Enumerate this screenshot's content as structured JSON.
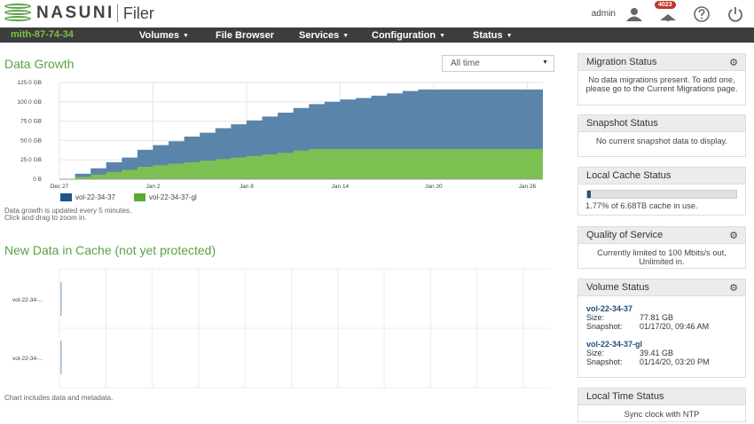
{
  "header": {
    "brand": "NASUNI",
    "product": "Filer",
    "user": "admin",
    "notification_count": "4023"
  },
  "nav": {
    "hostname": "mith-87-74-34",
    "items": [
      {
        "label": "Volumes",
        "caret": "▼"
      },
      {
        "label": "File Browser",
        "caret": ""
      },
      {
        "label": "Services",
        "caret": "▼"
      },
      {
        "label": "Configuration",
        "caret": "▼"
      },
      {
        "label": "Status",
        "caret": "▼"
      }
    ]
  },
  "data_growth": {
    "title": "Data Growth",
    "range_select": "All time",
    "notes": [
      "Data growth is updated every 5 minutes.",
      "Click and drag to zoom in."
    ]
  },
  "chart_data": [
    {
      "type": "area",
      "title": "Data Growth",
      "y_ticks": [
        "125.0 GB",
        "100.0 GB",
        "75.0 GB",
        "50.0 GB",
        "25.0 GB",
        "0 B"
      ],
      "x_ticks": [
        "Dec 27",
        "Jan 2",
        "Jan 8",
        "Jan 14",
        "Jan 20",
        "Jan 26"
      ],
      "ylim": [
        0,
        125
      ],
      "x_days": [
        0,
        1,
        2,
        3,
        4,
        5,
        6,
        7,
        8,
        9,
        10,
        11,
        12,
        13,
        14,
        15,
        16,
        17,
        18,
        19,
        20,
        21,
        22,
        23,
        24,
        25,
        26,
        27,
        28,
        29,
        30,
        31
      ],
      "series": [
        {
          "name": "vol-22-34-37",
          "color": "#1e5487",
          "values": [
            0,
            4,
            8,
            13,
            16,
            22,
            26,
            29,
            33,
            36,
            40,
            43,
            46,
            49,
            52,
            55,
            58,
            61,
            64,
            66,
            69,
            72,
            75,
            77,
            77,
            77,
            77,
            77,
            77,
            77,
            77,
            77
          ]
        },
        {
          "name": "vol-22-34-37-gl",
          "color": "#5cab31",
          "values": [
            0,
            3,
            6,
            9,
            12,
            16,
            18,
            20,
            22,
            24,
            26,
            28,
            30,
            32,
            34,
            37,
            39,
            39,
            39,
            39,
            39,
            39,
            39,
            39,
            39,
            39,
            39,
            39,
            39,
            39,
            39,
            39
          ]
        }
      ]
    },
    {
      "type": "bar",
      "title": "New Data in Cache (not yet protected)",
      "categories": [
        "vol-22-34-...",
        "vol-22-34-..."
      ],
      "values": [
        0,
        0
      ]
    }
  ],
  "cache": {
    "title": "New Data in Cache (not yet protected)",
    "note": "Chart includes data and metadata."
  },
  "panels": {
    "migration": {
      "title": "Migration Status",
      "body": "No data migrations present. To add one, please go to the Current Migrations page."
    },
    "snapshot": {
      "title": "Snapshot Status",
      "body": "No current snapshot data to display."
    },
    "local_cache": {
      "title": "Local Cache Status",
      "body": "1.77% of 6.68TB cache in use.",
      "usage_fraction": 0.0177
    },
    "qos": {
      "title": "Quality of Service",
      "body": "Currently limited to 100 Mbits/s out, Unlimited in."
    },
    "volume": {
      "title": "Volume Status",
      "volumes": [
        {
          "name": "vol-22-34-37",
          "size_label": "Size:",
          "size": "77.81 GB",
          "snap_label": "Snapshot:",
          "snapshot": "01/17/20, 09:46 AM"
        },
        {
          "name": "vol-22-34-37-gl",
          "size_label": "Size:",
          "size": "39.41 GB",
          "snap_label": "Snapshot:",
          "snapshot": "01/14/20, 03:20 PM"
        }
      ]
    },
    "time": {
      "title": "Local Time Status",
      "body": "Sync clock with NTP"
    }
  },
  "icons": {
    "gear": "gear-icon",
    "user": "user-icon",
    "notify": "notification-icon",
    "help": "help-icon",
    "power": "power-icon"
  }
}
